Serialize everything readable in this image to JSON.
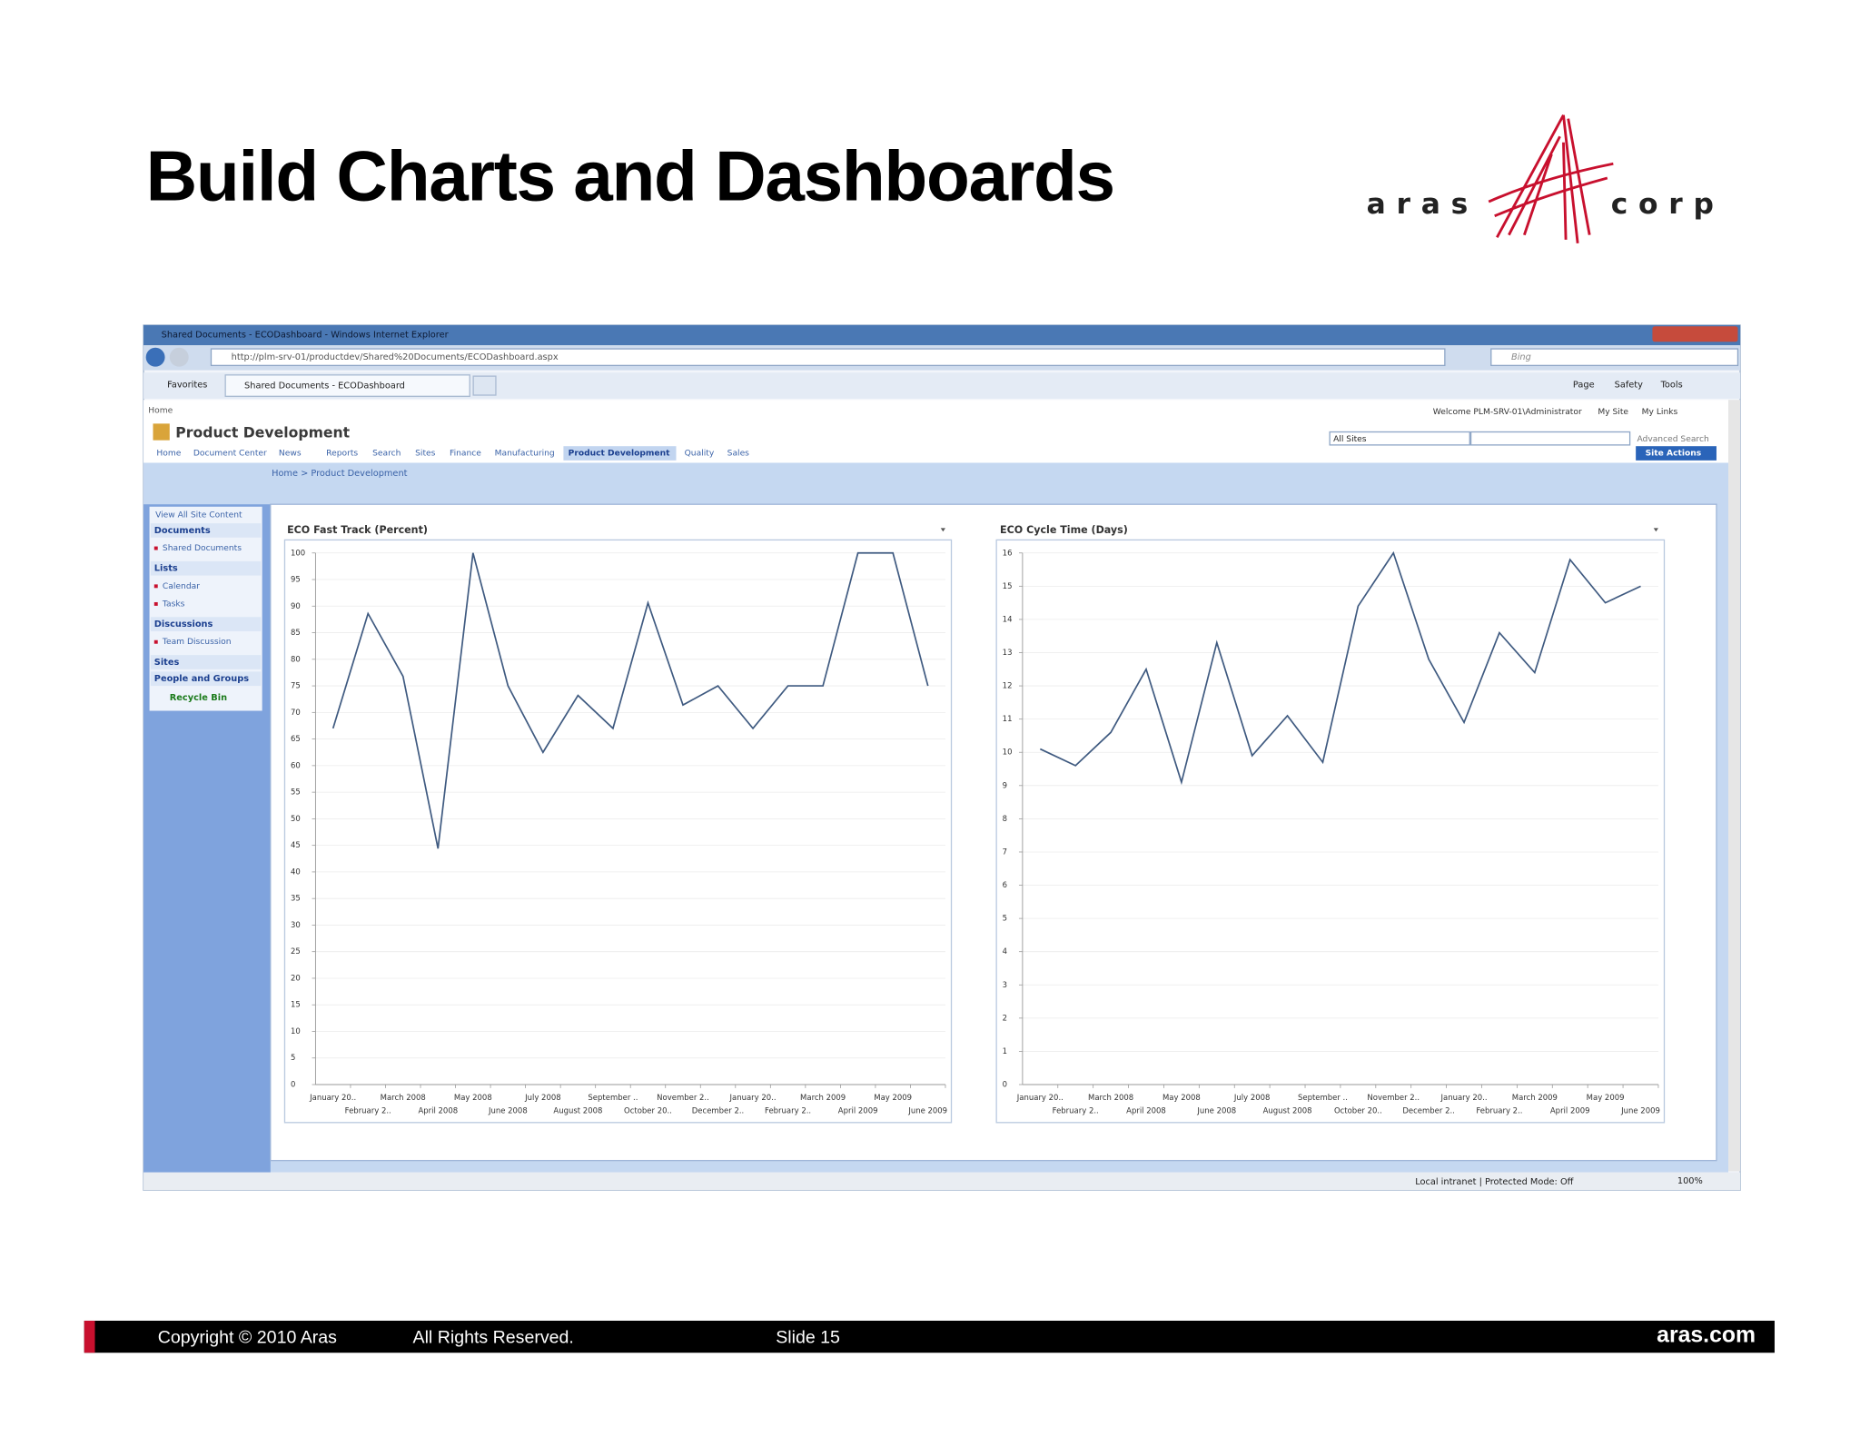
{
  "slide": {
    "title": "Build Charts and Dashboards",
    "logo_left": "aras",
    "logo_right": "corp",
    "footer": {
      "copyright": "Copyright © 2010 Aras",
      "rights": "All Rights Reserved.",
      "slide": "Slide 15",
      "site": "aras.com"
    }
  },
  "browser": {
    "window_title": "Shared Documents - ECODashboard - Windows Internet Explorer",
    "address": "http://plm-srv-01/productdev/Shared%20Documents/ECODashboard.aspx",
    "search": "Bing",
    "favorites": "Favorites",
    "tab": "Shared Documents - ECODashboard",
    "commands": [
      "Page",
      "Safety",
      "Tools"
    ],
    "status": "Local intranet | Protected Mode: Off",
    "zoom": "100%"
  },
  "site": {
    "top_link": "Home",
    "welcome": "Welcome PLM-SRV-01\\Administrator",
    "my_site": "My Site",
    "my_links": "My Links",
    "title": "Product Development",
    "nav": [
      "Home",
      "Document Center",
      "News",
      "Reports",
      "Search",
      "Sites",
      "Finance",
      "Manufacturing",
      "Product Development",
      "Quality",
      "Sales"
    ],
    "scope": "All Sites",
    "advanced_search": "Advanced Search",
    "site_actions": "Site Actions",
    "breadcrumb": "Home > Product Development"
  },
  "sidebar": {
    "view_all": "View All Site Content",
    "sections": [
      {
        "heading": "Documents",
        "items": [
          "Shared Documents"
        ]
      },
      {
        "heading": "Lists",
        "items": [
          "Calendar",
          "Tasks"
        ]
      },
      {
        "heading": "Discussions",
        "items": [
          "Team Discussion"
        ]
      },
      {
        "heading": "Sites"
      },
      {
        "heading": "People and Groups"
      }
    ],
    "recycle": "Recycle Bin"
  },
  "chart_data": [
    {
      "type": "line",
      "title": "ECO Fast Track (Percent)",
      "categories": [
        "January 20..",
        "February 2..",
        "March 2008",
        "April 2008",
        "May 2008",
        "June 2008",
        "July 2008",
        "August 2008",
        "September ..",
        "October 20..",
        "November 2..",
        "December 2..",
        "January 20..",
        "February 2..",
        "March 2009",
        "April 2009",
        "May 2009",
        "June 2009"
      ],
      "values": [
        67,
        88.6,
        76.8,
        44.4,
        100,
        75,
        62.5,
        73.2,
        67,
        90.6,
        71.4,
        75,
        67,
        75,
        75,
        100,
        100,
        75
      ],
      "color": "#3f5a80",
      "ylim": [
        0,
        100
      ],
      "yticks": [
        0,
        5,
        10,
        15,
        20,
        25,
        30,
        35,
        40,
        45,
        50,
        55,
        60,
        65,
        70,
        75,
        80,
        85,
        90,
        95,
        100
      ],
      "grid": true
    },
    {
      "type": "line",
      "title": "ECO Cycle Time (Days)",
      "categories": [
        "January 20..",
        "February 2..",
        "March 2008",
        "April 2008",
        "May 2008",
        "June 2008",
        "July 2008",
        "August 2008",
        "September ..",
        "October 20..",
        "November 2..",
        "December 2..",
        "January 20..",
        "February 2..",
        "March 2009",
        "April 2009",
        "May 2009",
        "June 2009"
      ],
      "values": [
        10.1,
        9.6,
        10.6,
        12.5,
        9.1,
        13.3,
        9.9,
        11.1,
        9.7,
        14.4,
        16,
        12.8,
        10.9,
        13.6,
        12.4,
        15.8,
        14.5,
        15
      ],
      "color": "#3f5a80",
      "ylim": [
        0,
        16
      ],
      "yticks": [
        0,
        1,
        2,
        3,
        4,
        5,
        6,
        7,
        8,
        9,
        10,
        11,
        12,
        13,
        14,
        15,
        16
      ],
      "grid": true
    }
  ]
}
